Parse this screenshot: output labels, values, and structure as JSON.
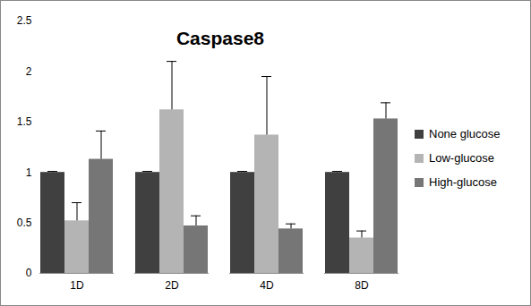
{
  "chart_data": {
    "type": "bar",
    "title": "Caspase8",
    "categories": [
      "1D",
      "2D",
      "4D",
      "8D"
    ],
    "series": [
      {
        "name": "None glucose",
        "color": "#404040",
        "values": [
          1.0,
          1.0,
          1.0,
          1.0
        ],
        "errors": [
          0.01,
          0.01,
          0.01,
          0.01
        ]
      },
      {
        "name": "Low-glucose",
        "color": "#b4b4b4",
        "values": [
          0.52,
          1.62,
          1.37,
          0.35
        ],
        "errors": [
          0.18,
          0.48,
          0.58,
          0.07
        ]
      },
      {
        "name": "High-glucose",
        "color": "#767676",
        "values": [
          1.13,
          0.47,
          0.44,
          1.53
        ],
        "errors": [
          0.28,
          0.1,
          0.05,
          0.16
        ]
      }
    ],
    "ylim": [
      0,
      2.5
    ],
    "yticks": [
      0,
      0.5,
      1,
      1.5,
      2,
      2.5
    ],
    "grid": false,
    "legend": "right"
  }
}
